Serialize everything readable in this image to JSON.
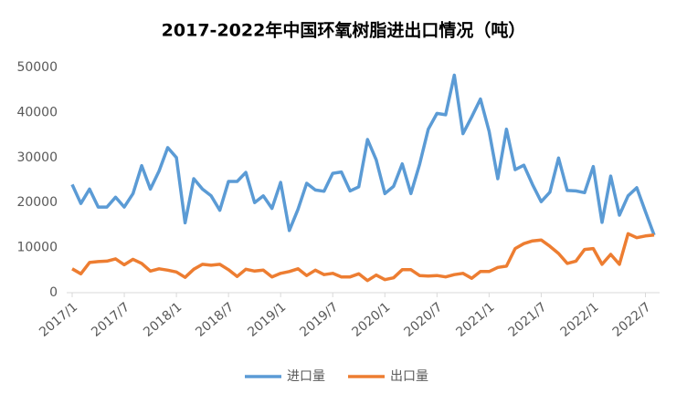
{
  "chart_data": {
    "type": "line",
    "title": "2017-2022年中国环氧树脂进出口情况（吨）",
    "categories": [
      "2017/1",
      null,
      null,
      null,
      null,
      null,
      "2017/7",
      null,
      null,
      null,
      null,
      null,
      "2018/1",
      null,
      null,
      null,
      null,
      null,
      "2018/7",
      null,
      null,
      null,
      null,
      null,
      "2019/1",
      null,
      null,
      null,
      null,
      null,
      "2019/7",
      null,
      null,
      null,
      null,
      null,
      "2020/1",
      null,
      null,
      null,
      null,
      null,
      "2020/7",
      null,
      null,
      null,
      null,
      null,
      "2021/1",
      null,
      null,
      null,
      null,
      null,
      "2021/7",
      null,
      null,
      null,
      null,
      null,
      "2022/1",
      null,
      null,
      null,
      null,
      null,
      "2022/7",
      null
    ],
    "series": [
      {
        "name": "进口量",
        "color": "#5b9bd5",
        "values": [
          24000,
          19800,
          23000,
          19000,
          19000,
          21200,
          19000,
          22000,
          28200,
          23000,
          27000,
          32200,
          30000,
          15500,
          25300,
          23000,
          21500,
          18300,
          24700,
          24700,
          26700,
          20000,
          21500,
          18700,
          24500,
          13800,
          18500,
          24300,
          22800,
          22500,
          26500,
          26800,
          22600,
          23500,
          34000,
          29500,
          22000,
          23600,
          28600,
          22000,
          28500,
          36300,
          39800,
          39500,
          48300,
          35300,
          39000,
          43000,
          35800,
          25300,
          36300,
          27300,
          28300,
          24000,
          20200,
          22300,
          29900,
          22700,
          22600,
          22200,
          28000,
          15600,
          25900,
          17200,
          21500,
          23300,
          18000,
          12800
        ]
      },
      {
        "name": "出口量",
        "color": "#ed7d31",
        "values": [
          5300,
          4200,
          6700,
          6900,
          7000,
          7500,
          6200,
          7400,
          6500,
          4800,
          5300,
          5000,
          4600,
          3400,
          5200,
          6300,
          6100,
          6300,
          5100,
          3600,
          5200,
          4800,
          5000,
          3500,
          4300,
          4700,
          5300,
          3800,
          5000,
          4000,
          4300,
          3500,
          3500,
          4200,
          2700,
          3900,
          2900,
          3300,
          5100,
          5100,
          3800,
          3700,
          3800,
          3500,
          4000,
          4300,
          3200,
          4700,
          4700,
          5600,
          5900,
          9800,
          10900,
          11500,
          11700,
          10300,
          8700,
          6500,
          7000,
          9600,
          9800,
          6300,
          8500,
          6300,
          13100,
          12200,
          12600,
          12800
        ]
      }
    ],
    "ylim": [
      0,
      50000
    ],
    "yticks": [
      0,
      10000,
      20000,
      30000,
      40000,
      50000
    ]
  }
}
